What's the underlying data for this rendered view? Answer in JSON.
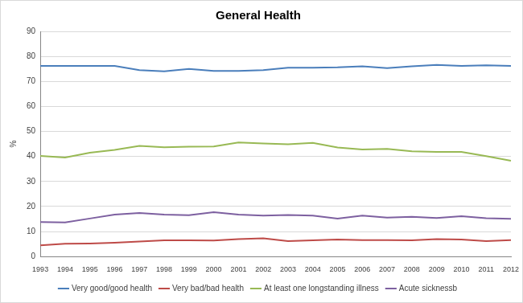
{
  "chart_data": {
    "type": "line",
    "title": "General Health",
    "y_label": "%",
    "categories": [
      "1993",
      "1994",
      "1995",
      "1996",
      "1997",
      "1998",
      "1999",
      "2000",
      "2001",
      "2002",
      "2003",
      "2004",
      "2005",
      "2006",
      "2007",
      "2008",
      "2009",
      "2010",
      "2011",
      "2012"
    ],
    "series": [
      {
        "name": "Very good/good health",
        "color": "#4a7ebb",
        "values": [
          76.2,
          76.2,
          76.2,
          76.2,
          74.5,
          74.0,
          75.0,
          74.2,
          74.2,
          74.5,
          75.5,
          75.5,
          75.6,
          76.0,
          75.3,
          76.0,
          76.6,
          76.2,
          76.4,
          76.2
        ]
      },
      {
        "name": "Very bad/bad health",
        "color": "#be4b48",
        "values": [
          4.5,
          5.1,
          5.2,
          5.5,
          6.0,
          6.5,
          6.5,
          6.4,
          7.0,
          7.3,
          6.2,
          6.5,
          6.8,
          6.6,
          6.6,
          6.5,
          7.0,
          6.8,
          6.2,
          6.6
        ]
      },
      {
        "name": "At least one longstanding illness",
        "color": "#98b954",
        "values": [
          40.2,
          39.6,
          41.5,
          42.6,
          44.2,
          43.7,
          43.9,
          44.0,
          45.6,
          45.2,
          44.9,
          45.4,
          43.6,
          42.8,
          43.0,
          42.1,
          41.8,
          41.8,
          40.1,
          38.3
        ]
      },
      {
        "name": "Acute sicknessb",
        "color": "#7d60a0",
        "values": [
          13.8,
          13.6,
          15.2,
          16.8,
          17.4,
          16.8,
          16.5,
          17.7,
          16.8,
          16.4,
          16.6,
          16.4,
          15.2,
          16.4,
          15.6,
          15.9,
          15.4,
          16.1,
          15.3,
          15.1
        ]
      }
    ],
    "ylim": [
      0,
      90
    ],
    "yticks": [
      0,
      10,
      20,
      30,
      40,
      50,
      60,
      70,
      80,
      90
    ],
    "grid": true,
    "legend": "bottom"
  }
}
